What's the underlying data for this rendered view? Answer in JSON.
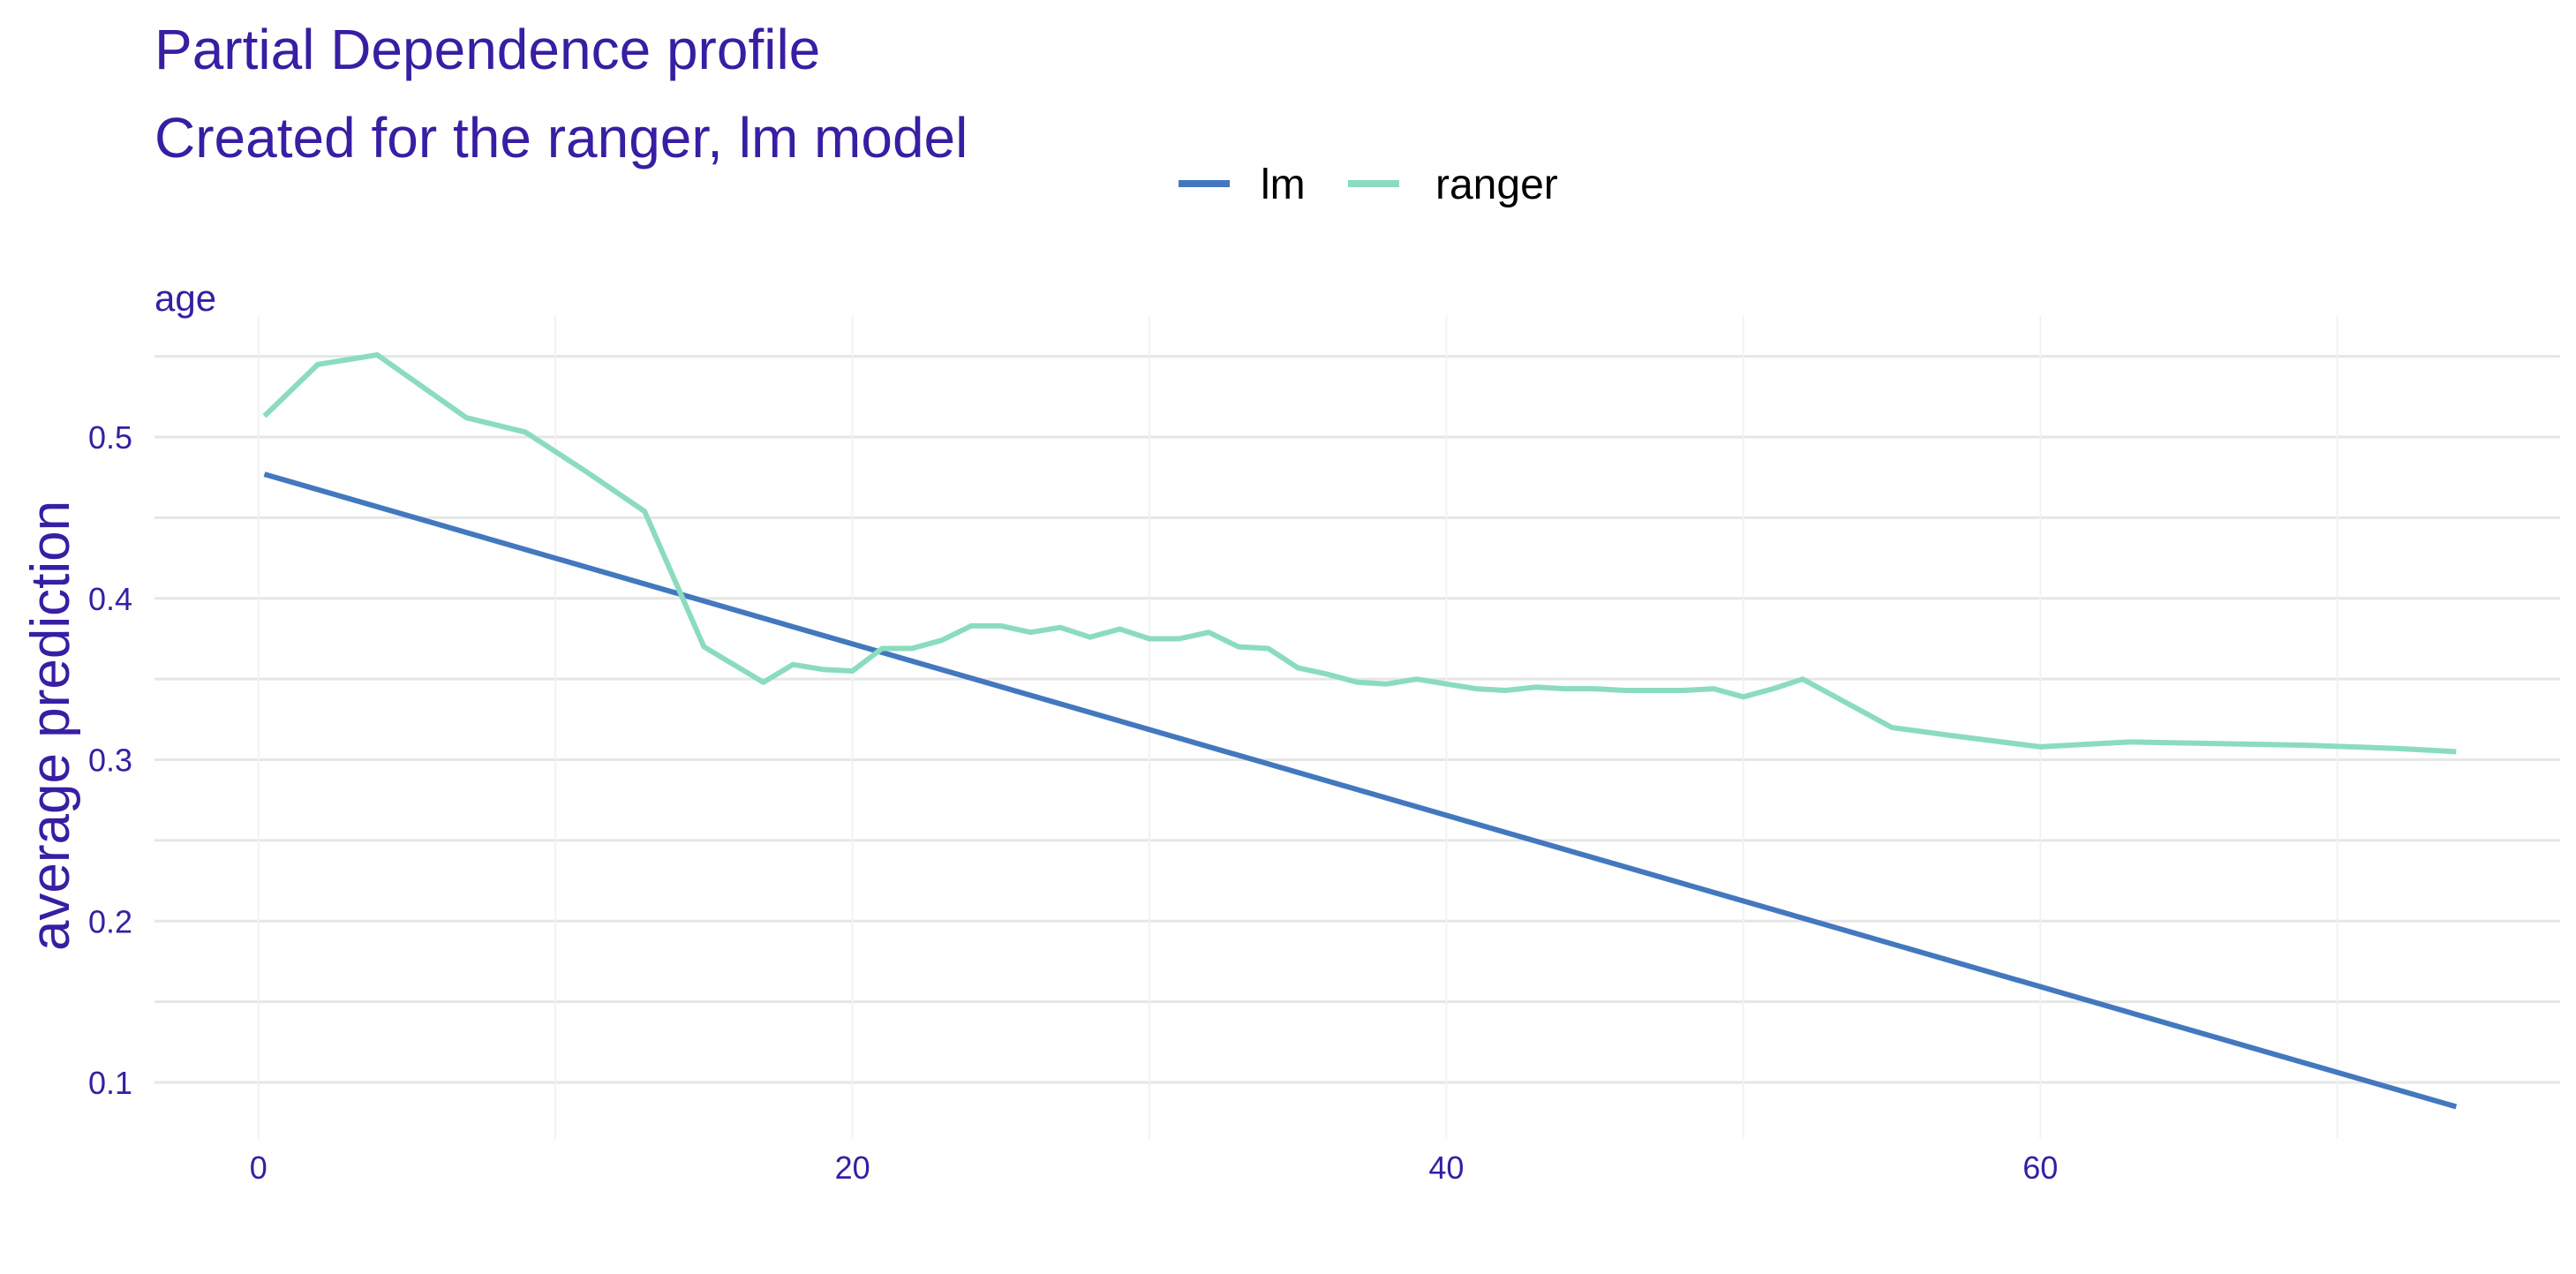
{
  "chart_data": {
    "type": "line",
    "title": "Partial Dependence profile",
    "subtitle": "Created for the ranger, lm model",
    "facet_label": "age",
    "xlabel": "",
    "ylabel": "average prediction",
    "xlim": [
      -3.5,
      77.5
    ],
    "ylim": [
      0.065,
      0.575
    ],
    "x_ticks": [
      0,
      20,
      40,
      60
    ],
    "x_tick_labels": [
      "0",
      "20",
      "40",
      "60"
    ],
    "x_minor_ticks": [
      10,
      30,
      50,
      70
    ],
    "y_ticks": [
      0.1,
      0.2,
      0.3,
      0.4,
      0.5
    ],
    "y_tick_labels": [
      "0.1",
      "0.2",
      "0.3",
      "0.4",
      "0.5"
    ],
    "y_minor_ticks": [
      0.15,
      0.25,
      0.35,
      0.45,
      0.55
    ],
    "grid": true,
    "legend_position": "top",
    "colors": {
      "title": "#371ea3",
      "grid": "#e6e6e6",
      "grid_minor": "#f2f2f2"
    },
    "series": [
      {
        "name": "lm",
        "color": "#4378bf",
        "x": [
          0.2,
          74
        ],
        "y": [
          0.477,
          0.085
        ]
      },
      {
        "name": "ranger",
        "color": "#8bdcbe",
        "x": [
          0.2,
          2,
          4,
          7,
          9,
          11,
          13,
          15,
          17,
          18,
          19,
          20,
          21,
          22,
          23,
          24,
          25,
          26,
          27,
          28,
          29,
          30,
          31,
          32,
          33,
          34,
          35,
          36,
          37,
          38,
          39,
          40,
          41,
          42,
          43,
          44,
          45,
          46,
          47,
          48,
          49,
          50,
          51,
          52,
          53,
          55,
          57,
          60,
          63,
          66,
          69,
          72,
          74
        ],
        "y": [
          0.513,
          0.545,
          0.551,
          0.512,
          0.503,
          0.479,
          0.454,
          0.37,
          0.348,
          0.359,
          0.356,
          0.355,
          0.369,
          0.369,
          0.374,
          0.383,
          0.383,
          0.379,
          0.382,
          0.376,
          0.381,
          0.375,
          0.375,
          0.379,
          0.37,
          0.369,
          0.357,
          0.353,
          0.348,
          0.347,
          0.35,
          0.347,
          0.344,
          0.343,
          0.345,
          0.344,
          0.344,
          0.343,
          0.343,
          0.343,
          0.344,
          0.339,
          0.344,
          0.35,
          0.34,
          0.32,
          0.315,
          0.308,
          0.311,
          0.31,
          0.309,
          0.307,
          0.305
        ]
      }
    ]
  }
}
